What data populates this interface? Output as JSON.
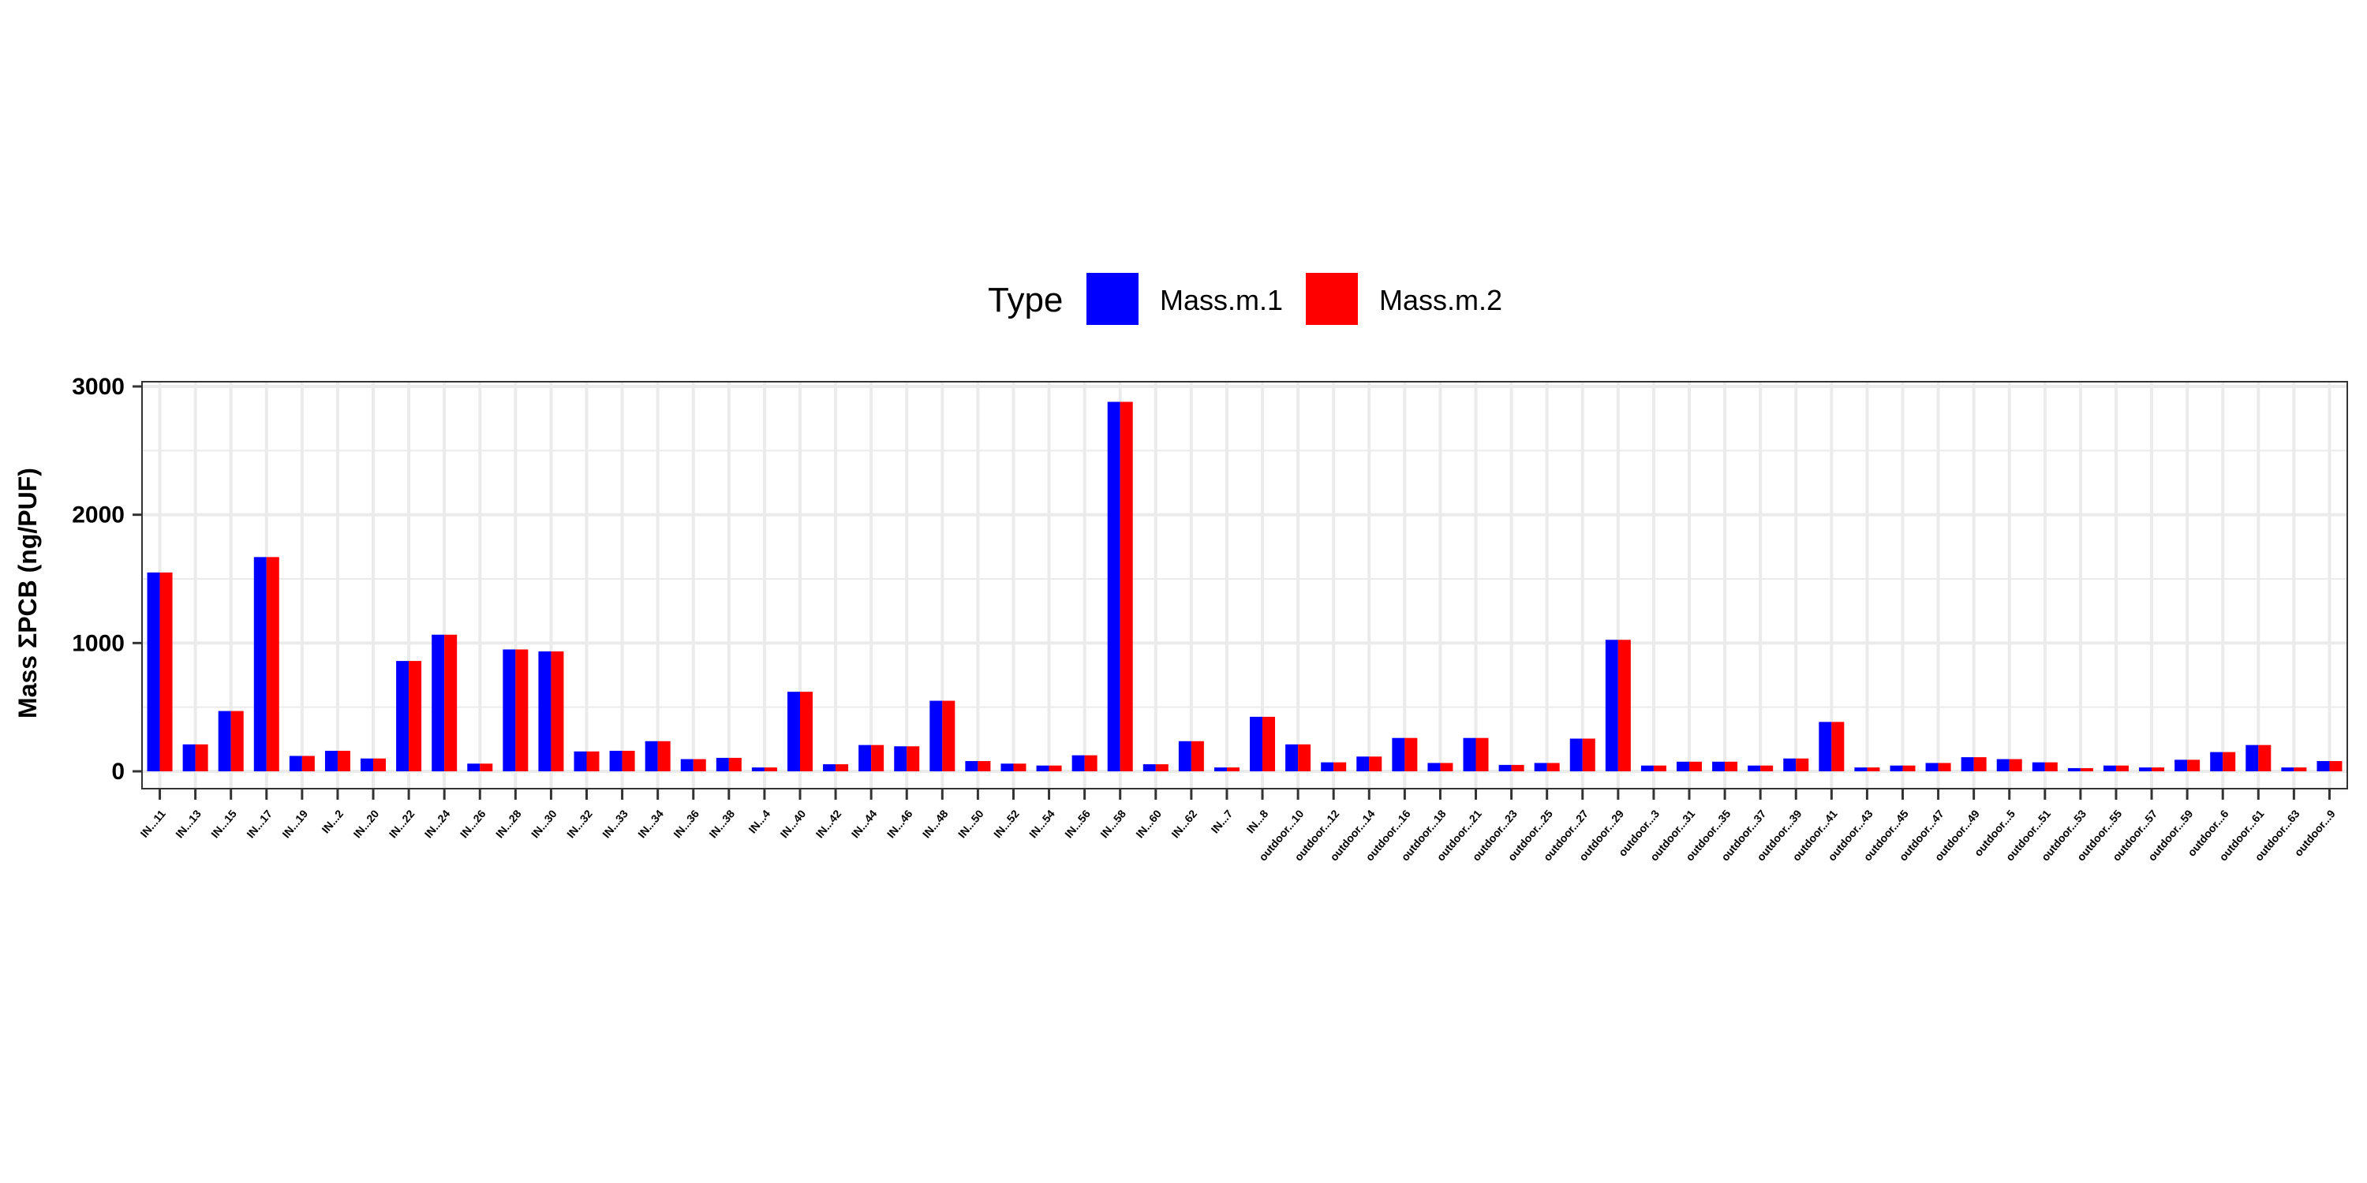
{
  "chart_data": {
    "type": "bar",
    "xlabel": "",
    "ylabel": "Mass ΣPCB (ng/PUF)",
    "ylim": [
      -120,
      3000
    ],
    "yticks": [
      0,
      1000,
      2000,
      3000
    ],
    "grid": true,
    "legend": {
      "title": "Type",
      "position": "top"
    },
    "categories": [
      "IN...11",
      "IN...13",
      "IN...15",
      "IN...17",
      "IN...19",
      "IN...2",
      "IN...20",
      "IN...22",
      "IN...24",
      "IN...26",
      "IN...28",
      "IN...30",
      "IN...32",
      "IN...33",
      "IN...34",
      "IN...36",
      "IN...38",
      "IN...4",
      "IN...40",
      "IN...42",
      "IN...44",
      "IN...46",
      "IN...48",
      "IN...50",
      "IN...52",
      "IN...54",
      "IN...56",
      "IN...58",
      "IN...60",
      "IN...62",
      "IN...7",
      "IN...8",
      "outdoor...10",
      "outdoor...12",
      "outdoor...14",
      "outdoor...16",
      "outdoor...18",
      "outdoor...21",
      "outdoor...23",
      "outdoor...25",
      "outdoor...27",
      "outdoor...29",
      "outdoor...3",
      "outdoor...31",
      "outdoor...35",
      "outdoor...37",
      "outdoor...39",
      "outdoor...41",
      "outdoor...43",
      "outdoor...45",
      "outdoor...47",
      "outdoor...49",
      "outdoor...5",
      "outdoor...51",
      "outdoor...53",
      "outdoor...55",
      "outdoor...57",
      "outdoor...59",
      "outdoor...6",
      "outdoor...61",
      "outdoor...63",
      "outdoor...9"
    ],
    "series": [
      {
        "name": "Mass.m.1",
        "color": "#0000ff",
        "values": [
          1550,
          210,
          470,
          1670,
          120,
          160,
          100,
          860,
          1065,
          60,
          950,
          935,
          155,
          160,
          235,
          95,
          105,
          30,
          620,
          55,
          205,
          195,
          550,
          80,
          60,
          45,
          125,
          2880,
          55,
          235,
          30,
          425,
          210,
          70,
          115,
          260,
          65,
          260,
          50,
          65,
          255,
          1025,
          45,
          75,
          75,
          45,
          100,
          385,
          30,
          45,
          65,
          110,
          95,
          70,
          25,
          45,
          30,
          90,
          150,
          205,
          30,
          80
        ]
      },
      {
        "name": "Mass.m.2",
        "color": "#ff0000",
        "values": [
          1550,
          210,
          470,
          1670,
          120,
          160,
          100,
          860,
          1065,
          60,
          950,
          935,
          155,
          160,
          235,
          95,
          105,
          30,
          620,
          55,
          205,
          195,
          550,
          80,
          60,
          45,
          125,
          2880,
          55,
          235,
          30,
          425,
          210,
          70,
          115,
          260,
          65,
          260,
          50,
          65,
          255,
          1025,
          45,
          75,
          75,
          45,
          100,
          385,
          30,
          45,
          65,
          110,
          95,
          70,
          25,
          45,
          30,
          90,
          150,
          205,
          30,
          80
        ]
      }
    ]
  }
}
